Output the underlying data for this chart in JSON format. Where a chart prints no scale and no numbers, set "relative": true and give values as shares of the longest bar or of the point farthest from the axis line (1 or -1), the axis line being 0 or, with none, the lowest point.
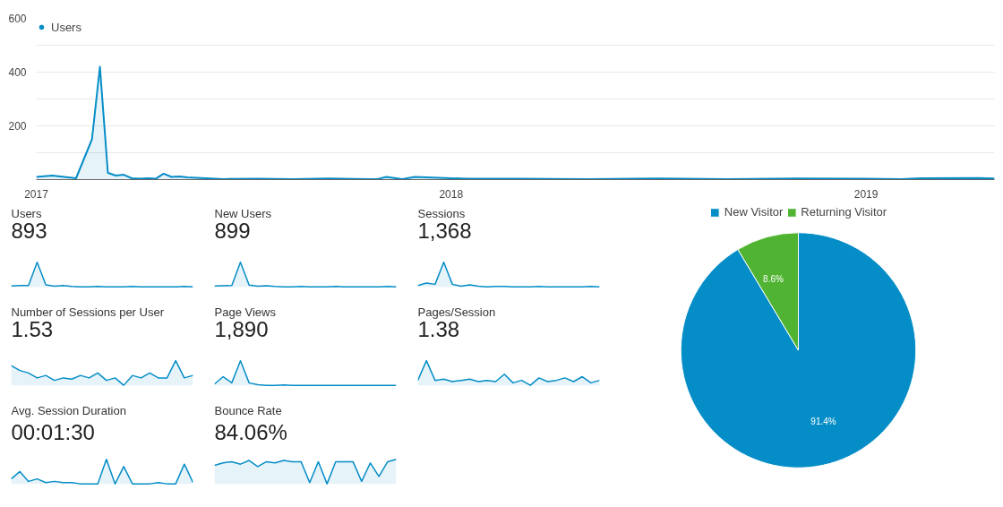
{
  "chart_data": [
    {
      "type": "area",
      "x": [
        "2017-01-01",
        "2017-01-15",
        "2017-01-29",
        "2017-02-05",
        "2017-02-19",
        "2017-02-26",
        "2017-03-05",
        "2017-03-12",
        "2017-03-19",
        "2017-03-26",
        "2017-04-02",
        "2017-04-09",
        "2017-04-16",
        "2017-04-23",
        "2017-04-30",
        "2017-05-07",
        "2017-05-14",
        "2017-06-15",
        "2017-07-15",
        "2017-08-15",
        "2017-09-15",
        "2017-10-20",
        "2017-10-28",
        "2017-11-05",
        "2017-11-19",
        "2017-11-30",
        "2018-01-15",
        "2018-03-01",
        "2018-05-01",
        "2018-07-01",
        "2018-09-01",
        "2018-11-01",
        "2019-01-01",
        "2019-02-01",
        "2019-02-20",
        "2019-04-10",
        "2019-04-24"
      ],
      "series": [
        {
          "name": "Users",
          "color": "#058dc7",
          "values": [
            10,
            15,
            8,
            5,
            150,
            420,
            25,
            15,
            18,
            5,
            3,
            5,
            3,
            22,
            10,
            12,
            8,
            2,
            3,
            2,
            4,
            2,
            2,
            10,
            2,
            10,
            3,
            3,
            2,
            4,
            2,
            4,
            3,
            2,
            5,
            6,
            4
          ]
        }
      ],
      "xlim": [
        "2017-01-01",
        "2019-04-24"
      ],
      "xticks": [
        {
          "value": "2017-01-01",
          "label": "2017"
        },
        {
          "value": "2018-01-01",
          "label": "2018"
        },
        {
          "value": "2019-01-01",
          "label": "2019"
        }
      ],
      "ylim": [
        0,
        600
      ],
      "yticks": [
        {
          "value": 100,
          "label": null
        },
        200,
        {
          "value": 300,
          "label": null
        },
        400,
        {
          "value": 500,
          "label": null
        },
        600
      ],
      "grid": "y",
      "legend": "top left"
    },
    {
      "type": "area",
      "title": "Users",
      "subtitle": "893",
      "relative": true,
      "categories": [
        null,
        null,
        null,
        null,
        null,
        null,
        null,
        null,
        null,
        null,
        null,
        null,
        null,
        null,
        null,
        null,
        null,
        null,
        null,
        null,
        null,
        null
      ],
      "series": [
        {
          "color": "#058dc7",
          "values": [
            0.03,
            0.05,
            0.05,
            1,
            0.08,
            0.02,
            0.05,
            0.01,
            0,
            0,
            0.01,
            0,
            0,
            0,
            0.01,
            0,
            0,
            0,
            0,
            0,
            0.01,
            0
          ]
        }
      ]
    },
    {
      "type": "area",
      "title": "New Users",
      "subtitle": "899",
      "relative": true,
      "categories": [
        null,
        null,
        null,
        null,
        null,
        null,
        null,
        null,
        null,
        null,
        null,
        null,
        null,
        null,
        null,
        null,
        null,
        null,
        null,
        null,
        null,
        null
      ],
      "series": [
        {
          "color": "#058dc7",
          "values": [
            0.03,
            0.04,
            0.05,
            1,
            0.07,
            0.02,
            0.04,
            0.01,
            0,
            0,
            0.01,
            0,
            0,
            0,
            0.01,
            0,
            0,
            0,
            0,
            0,
            0.01,
            0
          ]
        }
      ]
    },
    {
      "type": "area",
      "title": "Sessions",
      "subtitle": "1,368",
      "relative": true,
      "categories": [
        null,
        null,
        null,
        null,
        null,
        null,
        null,
        null,
        null,
        null,
        null,
        null,
        null,
        null,
        null,
        null,
        null,
        null,
        null,
        null,
        null,
        null
      ],
      "series": [
        {
          "color": "#058dc7",
          "values": [
            0.05,
            0.15,
            0.1,
            1,
            0.1,
            0.02,
            0.08,
            0.02,
            0,
            0.01,
            0.01,
            0,
            0,
            0,
            0.01,
            0,
            0,
            0,
            0,
            0,
            0.01,
            0
          ]
        }
      ]
    },
    {
      "type": "area",
      "title": "Number of Sessions per User",
      "subtitle": "1.53",
      "relative": true,
      "categories": [
        null,
        null,
        null,
        null,
        null,
        null,
        null,
        null,
        null,
        null,
        null,
        null,
        null,
        null,
        null,
        null,
        null,
        null,
        null,
        null,
        null,
        null
      ],
      "series": [
        {
          "color": "#058dc7",
          "values": [
            0.8,
            0.6,
            0.5,
            0.3,
            0.4,
            0.2,
            0.3,
            0.25,
            0.4,
            0.3,
            0.5,
            0.2,
            0.3,
            0,
            0.4,
            0.3,
            0.5,
            0.3,
            0.3,
            1,
            0.3,
            0.4
          ]
        }
      ]
    },
    {
      "type": "area",
      "title": "Page Views",
      "subtitle": "1,890",
      "relative": true,
      "categories": [
        null,
        null,
        null,
        null,
        null,
        null,
        null,
        null,
        null,
        null,
        null,
        null,
        null,
        null,
        null,
        null,
        null,
        null,
        null,
        null,
        null,
        null
      ],
      "series": [
        {
          "color": "#058dc7",
          "values": [
            0.05,
            0.35,
            0.1,
            1,
            0.1,
            0.02,
            0,
            0,
            0.01,
            0,
            0,
            0,
            0,
            0,
            0,
            0,
            0,
            0,
            0,
            0,
            0,
            0
          ]
        }
      ]
    },
    {
      "type": "area",
      "title": "Pages/Session",
      "subtitle": "1.38",
      "relative": true,
      "categories": [
        null,
        null,
        null,
        null,
        null,
        null,
        null,
        null,
        null,
        null,
        null,
        null,
        null,
        null,
        null,
        null,
        null,
        null,
        null,
        null,
        null,
        null
      ],
      "series": [
        {
          "color": "#058dc7",
          "values": [
            0.2,
            1,
            0.2,
            0.25,
            0.15,
            0.2,
            0.25,
            0.15,
            0.2,
            0.15,
            0.45,
            0.1,
            0.2,
            0,
            0.3,
            0.15,
            0.2,
            0.3,
            0.15,
            0.35,
            0.1,
            0.2
          ]
        }
      ]
    },
    {
      "type": "area",
      "title": "Avg. Session Duration",
      "subtitle": "00:01:30",
      "relative": true,
      "categories": [
        null,
        null,
        null,
        null,
        null,
        null,
        null,
        null,
        null,
        null,
        null,
        null,
        null,
        null,
        null,
        null,
        null,
        null,
        null,
        null,
        null,
        null
      ],
      "series": [
        {
          "color": "#058dc7",
          "values": [
            0.2,
            0.5,
            0.1,
            0.2,
            0.05,
            0.1,
            0.05,
            0.05,
            0,
            0,
            0,
            1,
            0,
            0.7,
            0,
            0,
            0,
            0.05,
            0,
            0,
            0.8,
            0.05
          ]
        }
      ]
    },
    {
      "type": "area",
      "title": "Bounce Rate",
      "subtitle": "84.06%",
      "relative": true,
      "categories": [
        null,
        null,
        null,
        null,
        null,
        null,
        null,
        null,
        null,
        null,
        null,
        null,
        null,
        null,
        null,
        null,
        null,
        null,
        null,
        null,
        null,
        null
      ],
      "series": [
        {
          "color": "#058dc7",
          "values": [
            0.75,
            0.85,
            0.9,
            0.8,
            0.95,
            0.7,
            0.9,
            0.85,
            0.95,
            0.9,
            0.9,
            0.05,
            0.9,
            0,
            0.9,
            0.9,
            0.9,
            0.1,
            0.85,
            0.3,
            0.9,
            1
          ]
        }
      ]
    },
    {
      "type": "pie",
      "categories": [
        "New Visitor",
        "Returning Visitor"
      ],
      "values": [
        91.4,
        8.6
      ],
      "colors": [
        "#058dc7",
        "#50b432"
      ],
      "value_labels": [
        "91.4%",
        "8.6%"
      ],
      "legend": "top"
    }
  ]
}
